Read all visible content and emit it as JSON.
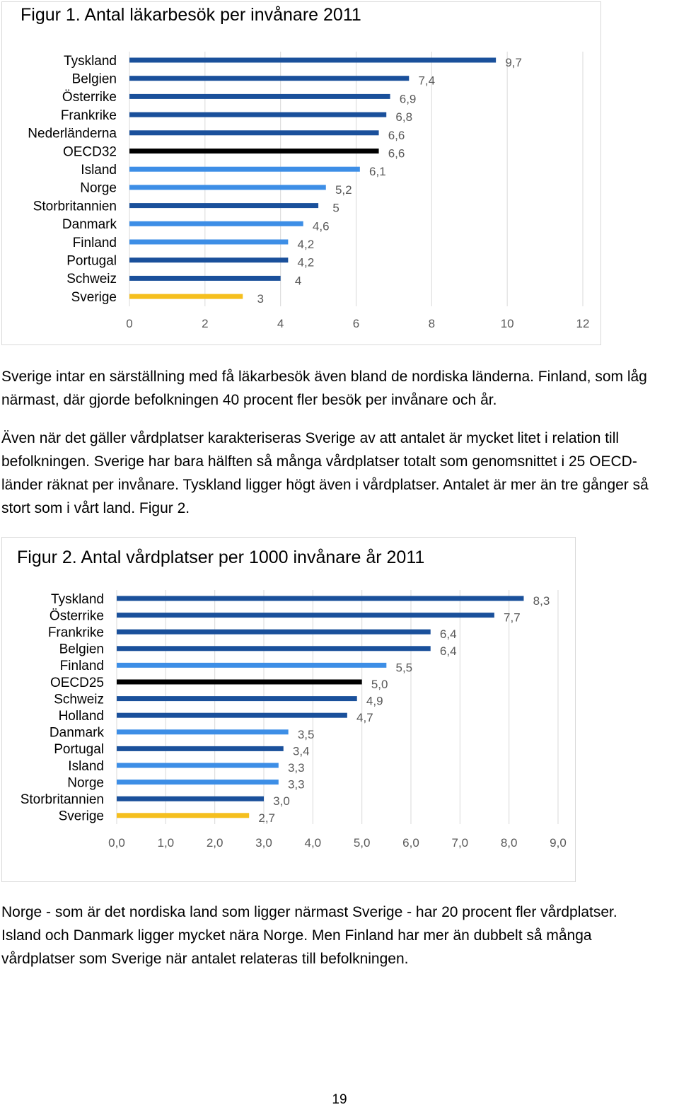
{
  "colors": {
    "bar_default": "#1a509b",
    "bar_nordic": "#3d8ee6",
    "bar_oecd": "#000000",
    "bar_sweden": "#f5bf1e",
    "grid": "#d9d9d9",
    "value_label": "#595959",
    "tick_label": "#595959"
  },
  "figures": {
    "fig1": {
      "title": "Figur 1. Antal läkarbesök per invånare 2011"
    },
    "fig2": {
      "title": "Figur 2. Antal vårdplatser per 1000 invånare år 2011"
    }
  },
  "text": {
    "paragraph1": "Sverige intar en särställning med få läkarbesök även bland de nordiska länderna. Finland, som låg närmast, där gjorde befolkningen 40 procent fler besök per invånare och år.",
    "paragraph2": "Även när det gäller vårdplatser karakteriseras Sverige av att antalet är mycket litet i relation till befolkningen. Sverige har bara hälften så många vårdplatser totalt som genomsnittet i 25 OECD-länder räknat per invånare. Tyskland ligger högt även i vårdplatser. Antalet är mer än tre gånger så stort som i vårt land. Figur 2.",
    "paragraph3": "Norge - som är det nordiska land som ligger närmast Sverige - har 20 procent fler vårdplatser. Island och Danmark ligger mycket nära Norge. Men Finland har mer än dubbelt så många vårdplatser som Sverige när antalet relateras till befolkningen.",
    "page_number": "19"
  },
  "chart_data": [
    {
      "type": "bar",
      "orientation": "horizontal",
      "title": "Figur 1. Antal läkarbesök per invånare 2011",
      "categories": [
        "Tyskland",
        "Belgien",
        "Österrike",
        "Frankrike",
        "Nederländerna",
        "OECD32",
        "Island",
        "Norge",
        "Storbritannien",
        "Danmark",
        "Finland",
        "Portugal",
        "Schweiz",
        "Sverige"
      ],
      "values": [
        9.7,
        7.4,
        6.9,
        6.8,
        6.6,
        6.6,
        6.1,
        5.2,
        5.0,
        4.6,
        4.2,
        4.2,
        4.0,
        3.0
      ],
      "value_labels": [
        "9,7",
        "7,4",
        "6,9",
        "6,8",
        "6,6",
        "6,6",
        "6,1",
        "5,2",
        "5",
        "4,6",
        "4,2",
        "4,2",
        "4",
        "3"
      ],
      "bar_colors": [
        "#1a509b",
        "#1a509b",
        "#1a509b",
        "#1a509b",
        "#1a509b",
        "#000000",
        "#3d8ee6",
        "#3d8ee6",
        "#1a509b",
        "#3d8ee6",
        "#3d8ee6",
        "#1a509b",
        "#1a509b",
        "#f5bf1e"
      ],
      "xlim": [
        0,
        12
      ],
      "xticks": [
        0,
        2,
        4,
        6,
        8,
        10,
        12
      ],
      "xtick_labels": [
        "0",
        "2",
        "4",
        "6",
        "8",
        "10",
        "12"
      ],
      "grid": true,
      "legend": false
    },
    {
      "type": "bar",
      "orientation": "horizontal",
      "title": "Figur 2. Antal vårdplatser per 1000 invånare år 2011",
      "categories": [
        "Tyskland",
        "Österrike",
        "Frankrike",
        "Belgien",
        "Finland",
        "OECD25",
        "Schweiz",
        "Holland",
        "Danmark",
        "Portugal",
        "Island",
        "Norge",
        "Storbritannien",
        "Sverige"
      ],
      "values": [
        8.3,
        7.7,
        6.4,
        6.4,
        5.5,
        5.0,
        4.9,
        4.7,
        3.5,
        3.4,
        3.3,
        3.3,
        3.0,
        2.7
      ],
      "value_labels": [
        "8,3",
        "7,7",
        "6,4",
        "6,4",
        "5,5",
        "5,0",
        "4,9",
        "4,7",
        "3,5",
        "3,4",
        "3,3",
        "3,3",
        "3,0",
        "2,7"
      ],
      "bar_colors": [
        "#1a509b",
        "#1a509b",
        "#1a509b",
        "#1a509b",
        "#3d8ee6",
        "#000000",
        "#1a509b",
        "#1a509b",
        "#3d8ee6",
        "#1a509b",
        "#3d8ee6",
        "#3d8ee6",
        "#1a509b",
        "#f5bf1e"
      ],
      "xlim": [
        0,
        9
      ],
      "xticks": [
        0,
        1,
        2,
        3,
        4,
        5,
        6,
        7,
        8,
        9
      ],
      "xtick_labels": [
        "0,0",
        "1,0",
        "2,0",
        "3,0",
        "4,0",
        "5,0",
        "6,0",
        "7,0",
        "8,0",
        "9,0"
      ],
      "grid": true,
      "legend": false
    }
  ]
}
